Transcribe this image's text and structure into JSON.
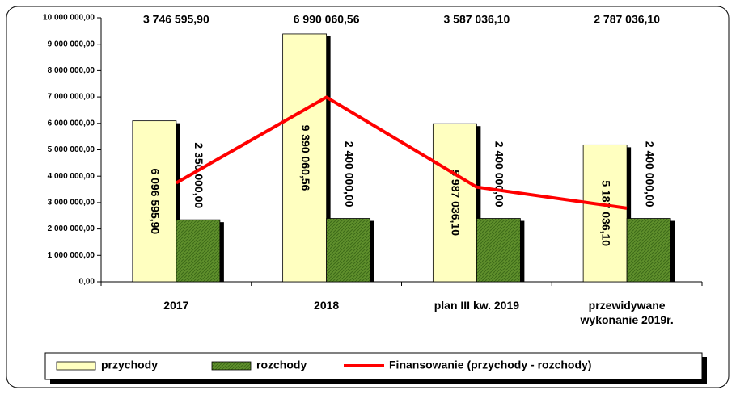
{
  "chart_data": {
    "type": "bar",
    "categories": [
      "2017",
      "2018",
      "plan III kw. 2019",
      "przewidywane wykonanie 2019r."
    ],
    "series": [
      {
        "name": "przychody",
        "type": "bar",
        "color": "#ffffc0",
        "values": [
          6096595.9,
          9390060.56,
          5987036.1,
          5187036.1
        ],
        "value_labels": [
          "6 096 595,90",
          "9 390 060,56",
          "5 987 036,10",
          "5 187 036,10"
        ]
      },
      {
        "name": "rozchody",
        "type": "bar",
        "color": "#5f8f2c",
        "values": [
          2350000,
          2400000,
          2400000,
          2400000
        ],
        "value_labels": [
          "2 350 000,00",
          "2 400 000,00",
          "2 400 000,00",
          "2 400 000,00"
        ]
      },
      {
        "name": "Finansowanie (przychody - rozchody)",
        "type": "line",
        "color": "#ff0000",
        "values": [
          3746595.9,
          6990060.56,
          3587036.1,
          2787036.1
        ],
        "value_labels": [
          "3 746 595,90",
          "6 990 060,56",
          "3 587 036,10",
          "2 787 036,10"
        ]
      }
    ],
    "ylim": [
      0,
      10000000
    ],
    "yticks": [
      {
        "value": 0,
        "label": "0,00"
      },
      {
        "value": 1000000,
        "label": "1 000 000,00"
      },
      {
        "value": 2000000,
        "label": "2 000 000,00"
      },
      {
        "value": 3000000,
        "label": "3 000 000,00"
      },
      {
        "value": 4000000,
        "label": "4 000 000,00"
      },
      {
        "value": 5000000,
        "label": "5 000 000,00"
      },
      {
        "value": 6000000,
        "label": "6 000 000,00"
      },
      {
        "value": 7000000,
        "label": "7 000 000,00"
      },
      {
        "value": 8000000,
        "label": "8 000 000,00"
      },
      {
        "value": 9000000,
        "label": "9 000 000,00"
      },
      {
        "value": 10000000,
        "label": "10 000 000,00"
      }
    ],
    "grid": false,
    "legend": "bottom"
  }
}
